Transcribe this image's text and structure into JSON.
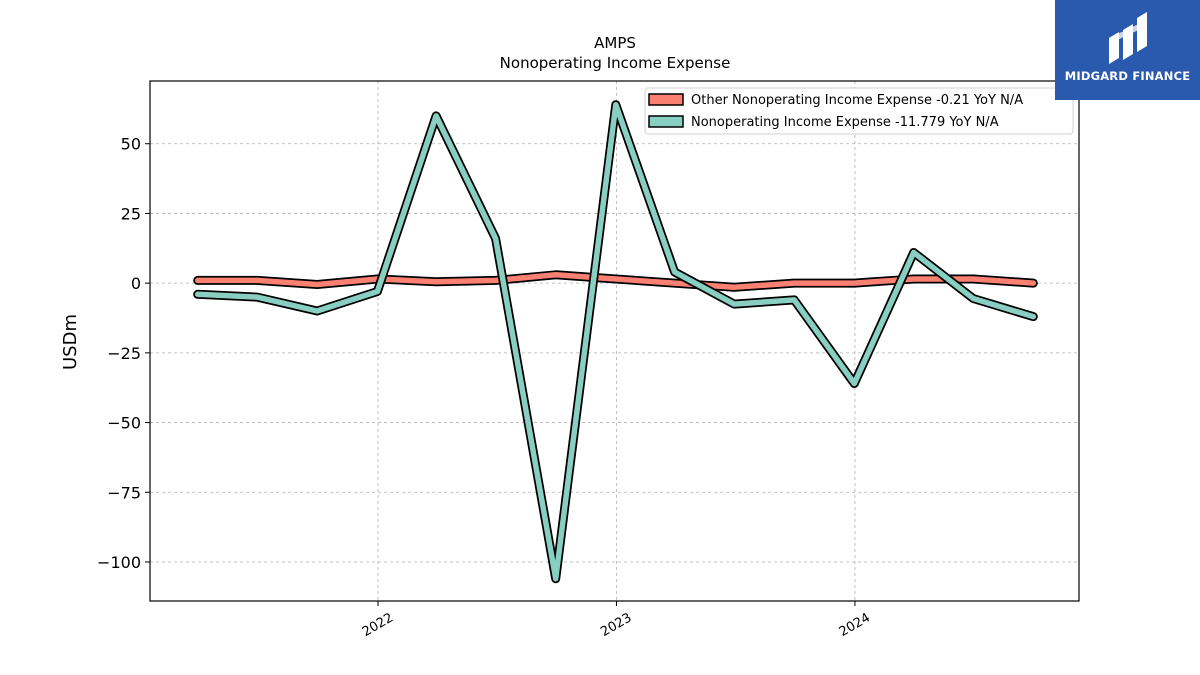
{
  "brand": {
    "name": "MIDGARD FINANCE",
    "bg_color": "#2a5aae"
  },
  "chart_data": {
    "type": "line",
    "title": "AMPS",
    "subtitle": "Nonoperating Income Expense",
    "xlabel": "",
    "ylabel": "USDm",
    "xlim": [
      "2021-01-17",
      "2024-12-09"
    ],
    "ylim": [
      -114,
      72.5
    ],
    "yticks": [
      -100,
      -75,
      -50,
      -25,
      0,
      25,
      50
    ],
    "ytick_labels": [
      "−100",
      "−75",
      "−50",
      "−25",
      "0",
      "25",
      "50"
    ],
    "xticks": [
      "2022-01-01",
      "2023-01-01",
      "2024-01-01"
    ],
    "xtick_labels": [
      "2022",
      "2023",
      "2024"
    ],
    "grid": true,
    "legend_position": "top-right",
    "x": [
      "2021-03-31",
      "2021-06-30",
      "2021-09-30",
      "2021-12-31",
      "2022-03-31",
      "2022-06-30",
      "2022-09-30",
      "2022-12-31",
      "2023-03-31",
      "2023-06-30",
      "2023-09-30",
      "2023-12-31",
      "2024-03-31",
      "2024-06-30",
      "2024-09-30"
    ],
    "series": [
      {
        "name": "Other Nonoperating Income Expense  -0.21 YoY N/A",
        "color": "#fa8072",
        "values": [
          1,
          1,
          -0.5,
          1.5,
          0.5,
          1,
          3,
          1.5,
          0,
          -1.5,
          0,
          0,
          1.5,
          1.5,
          0
        ]
      },
      {
        "name": "Nonoperating Income Expense  -11.779 YoY N/A",
        "color": "#88cfc1",
        "values": [
          -4,
          -5,
          -10,
          -3,
          60,
          16,
          -106,
          64,
          4,
          -7.5,
          -6,
          -36,
          11,
          -5.5,
          -12
        ]
      }
    ]
  }
}
